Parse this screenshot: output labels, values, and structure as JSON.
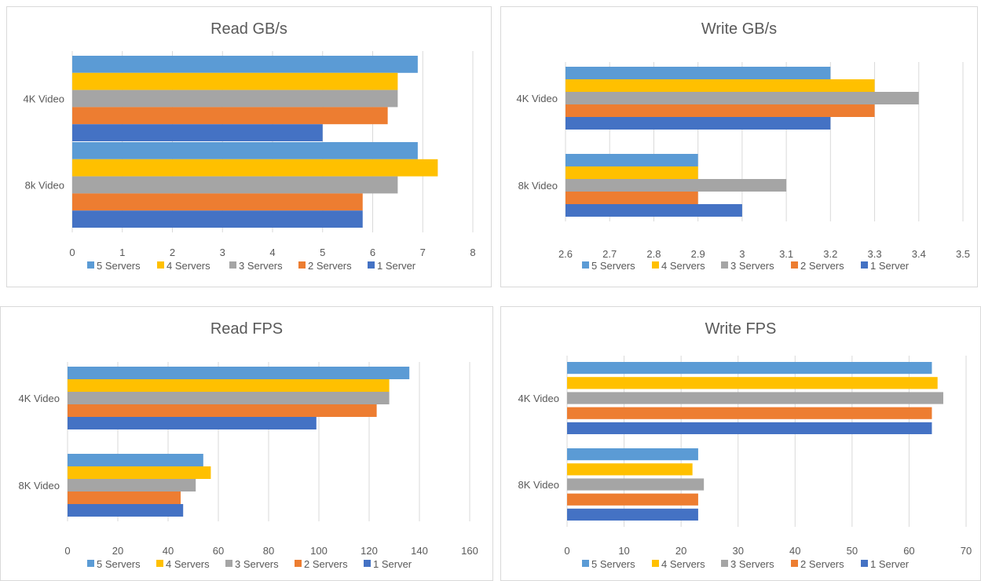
{
  "colors": {
    "5 Servers": "#5b9bd5",
    "4 Servers": "#ffc000",
    "3 Servers": "#a5a5a5",
    "2 Servers": "#ed7d31",
    "1 Server": "#4472c4"
  },
  "chart_data": [
    {
      "type": "bar",
      "orientation": "horizontal",
      "title": "Read GB/s",
      "categories": [
        "4K Video",
        "8k Video"
      ],
      "series": [
        {
          "name": "5 Servers",
          "values": [
            6.9,
            6.9
          ]
        },
        {
          "name": "4 Servers",
          "values": [
            6.5,
            7.3
          ]
        },
        {
          "name": "3 Servers",
          "values": [
            6.5,
            6.5
          ]
        },
        {
          "name": "2 Servers",
          "values": [
            6.3,
            5.8
          ]
        },
        {
          "name": "1 Server",
          "values": [
            5.0,
            5.8
          ]
        }
      ],
      "xlim": [
        0,
        8
      ],
      "ticks": [
        "0",
        "1",
        "2",
        "3",
        "4",
        "5",
        "6",
        "7",
        "8"
      ],
      "legend": "bottom",
      "grid": true
    },
    {
      "type": "bar",
      "orientation": "horizontal",
      "title": "Write GB/s",
      "categories": [
        "4K Video",
        "8k Video"
      ],
      "series": [
        {
          "name": "5 Servers",
          "values": [
            3.2,
            2.9
          ]
        },
        {
          "name": "4 Servers",
          "values": [
            3.3,
            2.9
          ]
        },
        {
          "name": "3 Servers",
          "values": [
            3.4,
            3.1
          ]
        },
        {
          "name": "2 Servers",
          "values": [
            3.3,
            2.9
          ]
        },
        {
          "name": "1 Server",
          "values": [
            3.2,
            3.0
          ]
        }
      ],
      "xlim": [
        2.6,
        3.5
      ],
      "ticks": [
        "2.6",
        "2.7",
        "2.8",
        "2.9",
        "3",
        "3.1",
        "3.2",
        "3.3",
        "3.4",
        "3.5"
      ],
      "legend": "bottom",
      "grid": true
    },
    {
      "type": "bar",
      "orientation": "horizontal",
      "title": "Read FPS",
      "categories": [
        "4K Video",
        "8K Video"
      ],
      "series": [
        {
          "name": "5 Servers",
          "values": [
            136,
            54
          ]
        },
        {
          "name": "4 Servers",
          "values": [
            128,
            57
          ]
        },
        {
          "name": "3 Servers",
          "values": [
            128,
            51
          ]
        },
        {
          "name": "2 Servers",
          "values": [
            123,
            45
          ]
        },
        {
          "name": "1 Server",
          "values": [
            99,
            46
          ]
        }
      ],
      "xlim": [
        0,
        160
      ],
      "ticks": [
        "0",
        "20",
        "40",
        "60",
        "80",
        "100",
        "120",
        "140",
        "160"
      ],
      "legend": "bottom",
      "grid": true
    },
    {
      "type": "bar",
      "orientation": "horizontal",
      "title": "Write FPS",
      "categories": [
        "4K Video",
        "8K Video"
      ],
      "series": [
        {
          "name": "5 Servers",
          "values": [
            64,
            23
          ]
        },
        {
          "name": "4 Servers",
          "values": [
            65,
            22
          ]
        },
        {
          "name": "3 Servers",
          "values": [
            66,
            24
          ]
        },
        {
          "name": "2 Servers",
          "values": [
            64,
            23
          ]
        },
        {
          "name": "1 Server",
          "values": [
            64,
            23
          ]
        }
      ],
      "xlim": [
        0,
        70
      ],
      "ticks": [
        "0",
        "10",
        "20",
        "30",
        "40",
        "50",
        "60",
        "70"
      ],
      "legend": "bottom",
      "grid": true
    }
  ]
}
